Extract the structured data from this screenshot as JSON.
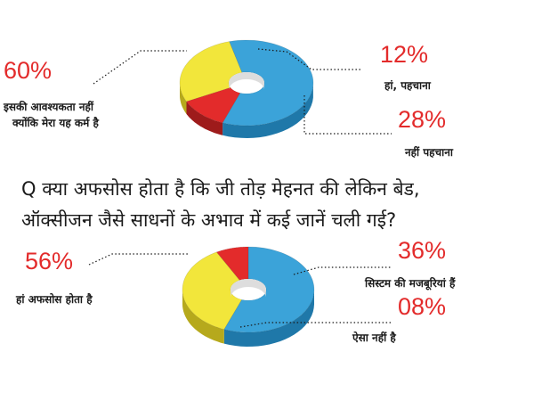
{
  "chart_data": [
    {
      "type": "pie",
      "title": "",
      "categories": [
        "इसकी आवश्यकता नहीं क्योंकि मेरा यह कर्म है",
        "हां, पहचाना",
        "नहीं पहचाना"
      ],
      "values": [
        60,
        12,
        28
      ],
      "value_labels": [
        "60%",
        "12%",
        "28%"
      ],
      "label_lines": [
        [
          "इसकी आवश्यकता नहीं",
          "क्योंकि मेरा यह कर्म है"
        ],
        [
          "हां, पहचाना"
        ],
        [
          "नहीं पहचाना"
        ]
      ],
      "colors": [
        "#3ba3d9",
        "#e32b2b",
        "#f2e63b"
      ],
      "side_colors": [
        "#1f78a9",
        "#9e1b1b",
        "#b6a91c"
      ]
    },
    {
      "type": "pie",
      "title": "",
      "categories": [
        "हां अफसोस होता है",
        "सिस्टम की मजबूरियां हैं",
        "ऐसा नहीं है"
      ],
      "values": [
        56,
        36,
        8
      ],
      "value_labels": [
        "56%",
        "36%",
        "08%"
      ],
      "label_lines": [
        [
          "हां अफसोस होता है"
        ],
        [
          "सिस्टम की मजबूरियां हैं"
        ],
        [
          "ऐसा नहीं है"
        ]
      ],
      "colors": [
        "#3ba3d9",
        "#f2e63b",
        "#e32b2b"
      ],
      "side_colors": [
        "#1f78a9",
        "#b6a91c",
        "#9e1b1b"
      ]
    }
  ],
  "question": {
    "line1": "Q क्या अफसोस होता है कि जी तोड़ मेहनत की लेकिन बेड,",
    "line2": "ऑक्सीजन जैसे साधनों के अभाव में कई जानें चली गई?"
  }
}
